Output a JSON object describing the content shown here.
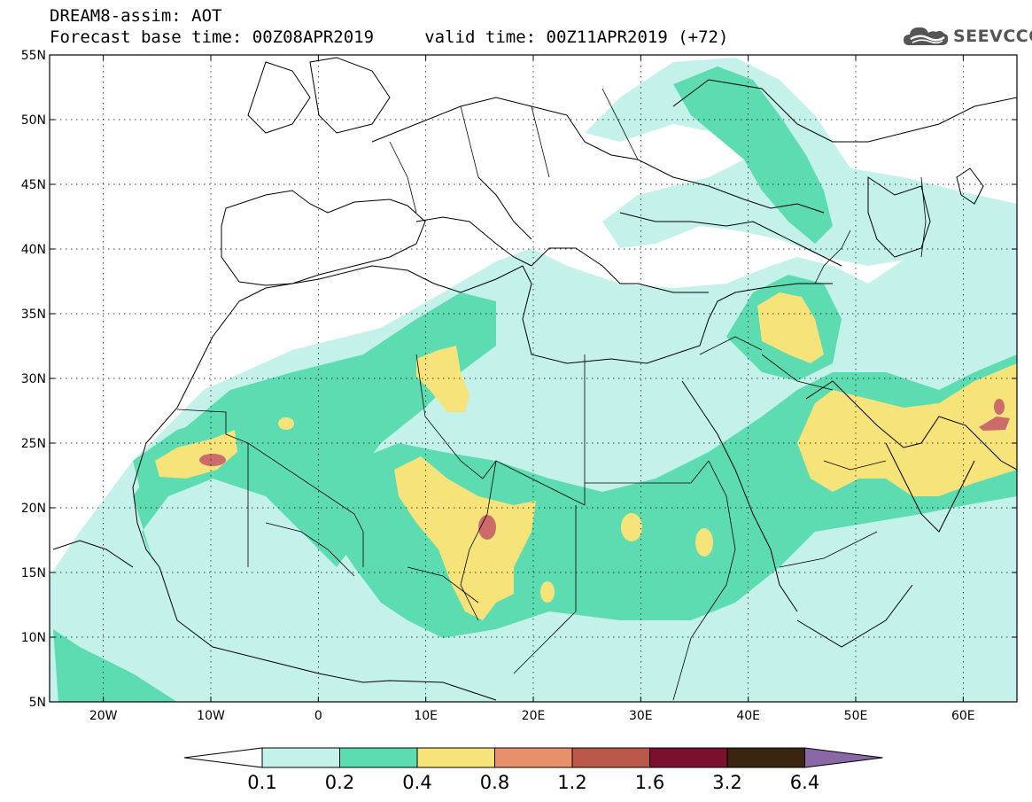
{
  "header": {
    "line1": "DREAM8-assim: AOT",
    "line2": "Forecast base time: 00Z08APR2019     valid time: 00Z11APR2019 (+72)"
  },
  "logo": {
    "text": "SEEVCCC",
    "icon": "cloud-icon"
  },
  "map": {
    "lon_range": [
      -25,
      65
    ],
    "lat_range": [
      5,
      55
    ],
    "lat_labels": [
      "55N",
      "50N",
      "45N",
      "40N",
      "35N",
      "30N",
      "25N",
      "20N",
      "15N",
      "10N",
      "5N"
    ],
    "lon_labels": [
      "20W",
      "10W",
      "0",
      "10E",
      "20E",
      "30E",
      "40E",
      "50E",
      "60E"
    ],
    "grid": "dotted"
  },
  "colorbar": {
    "ticks": [
      "0.1",
      "0.2",
      "0.4",
      "0.8",
      "1.2",
      "1.6",
      "3.2",
      "6.4"
    ],
    "colors": [
      "#ffffff",
      "#c4f2ea",
      "#5ddcb2",
      "#f6e37a",
      "#e8906a",
      "#b8574a",
      "#7a0f2e",
      "#3a2410",
      "#8a68a8"
    ]
  },
  "aot_colors": {
    "c1": "#c4f2ea",
    "c2": "#5ddcb2",
    "c3": "#f6e37a",
    "c4": "#e8906a",
    "c5": "#cd6a6a"
  }
}
